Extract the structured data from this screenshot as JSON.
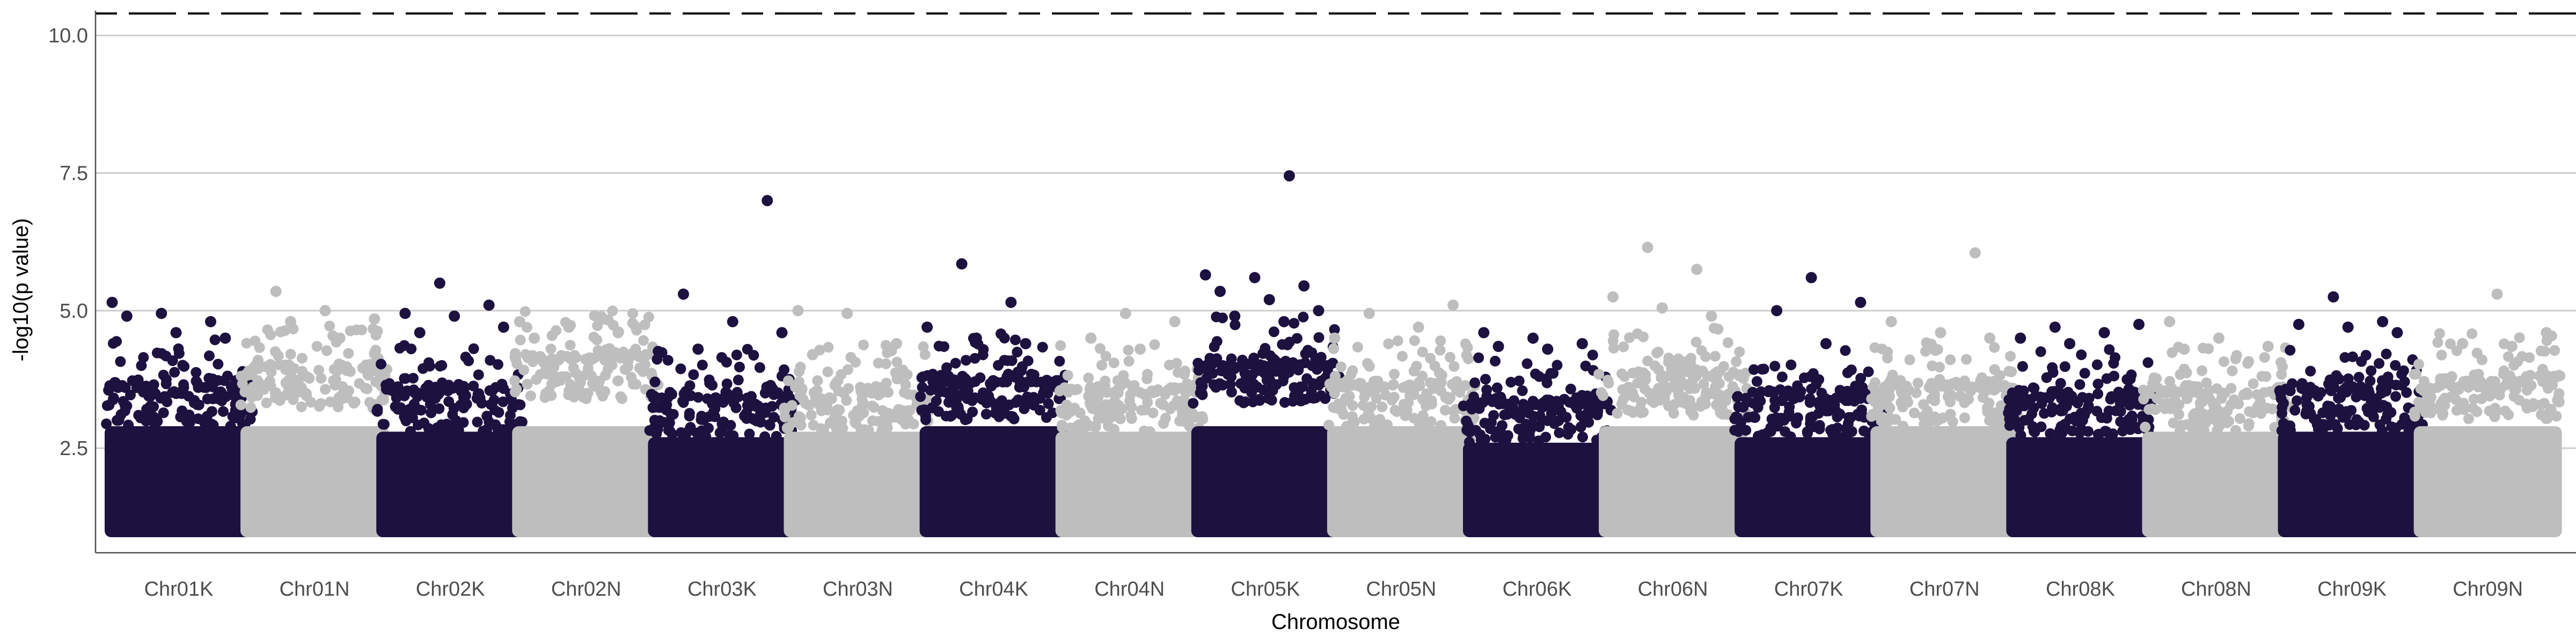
{
  "chart_data": {
    "type": "scatter",
    "subtype": "manhattan",
    "title": "",
    "xlabel": "Chromosome",
    "ylabel": "-log10(p value)",
    "ylim": [
      0.6,
      10.45
    ],
    "yticks": [
      2.5,
      5.0,
      7.5,
      10.0
    ],
    "ytick_labels": [
      "2.5",
      "5.0",
      "7.5",
      "10.0"
    ],
    "grid": "horizontal lines at y ticks only",
    "legend": "none",
    "colors": {
      "dark": "#1d1140",
      "light": "#bebebe",
      "grid": "#cccccc",
      "axis": "#4d4d4d"
    },
    "threshold": {
      "value": 5.0,
      "style": "solid",
      "color": "#cccccc"
    },
    "bonferroni_line": {
      "value": 10.4,
      "style": "dashed",
      "color": "#000000"
    },
    "categories": [
      "Chr01K",
      "Chr01N",
      "Chr02K",
      "Chr02N",
      "Chr03K",
      "Chr03N",
      "Chr04K",
      "Chr04N",
      "Chr05K",
      "Chr05N",
      "Chr06K",
      "Chr06N",
      "Chr07K",
      "Chr07N",
      "Chr08K",
      "Chr08N",
      "Chr09K",
      "Chr09N"
    ],
    "category_colors": [
      "dark",
      "light",
      "dark",
      "light",
      "dark",
      "light",
      "dark",
      "light",
      "dark",
      "light",
      "dark",
      "light",
      "dark",
      "light",
      "dark",
      "light",
      "dark",
      "light"
    ],
    "bulk_floor": 1.0,
    "bulk_top": [
      3.5,
      3.8,
      3.4,
      4.0,
      3.3,
      3.4,
      3.6,
      3.4,
      3.9,
      3.5,
      3.2,
      3.7,
      3.3,
      3.5,
      3.3,
      3.4,
      3.4,
      3.6
    ],
    "top_peaks": [
      {
        "chr": "Chr01K",
        "values": [
          5.15,
          4.95,
          4.8,
          4.9,
          4.6,
          4.5
        ]
      },
      {
        "chr": "Chr01N",
        "values": [
          5.35,
          5.0,
          4.85,
          4.8,
          4.5
        ]
      },
      {
        "chr": "Chr02K",
        "values": [
          5.5,
          5.1,
          4.95,
          4.9,
          4.7,
          4.6
        ]
      },
      {
        "chr": "Chr02N",
        "values": [
          4.85,
          4.8,
          4.7,
          4.6,
          4.5
        ]
      },
      {
        "chr": "Chr03K",
        "values": [
          7.0,
          5.3,
          4.8,
          4.6,
          4.3
        ]
      },
      {
        "chr": "Chr03N",
        "values": [
          5.0,
          4.95,
          4.4,
          4.2
        ]
      },
      {
        "chr": "Chr04K",
        "values": [
          5.85,
          5.15,
          4.7,
          4.5,
          4.4
        ]
      },
      {
        "chr": "Chr04N",
        "values": [
          4.95,
          4.8,
          4.5,
          4.3
        ]
      },
      {
        "chr": "Chr05K",
        "values": [
          7.45,
          5.65,
          5.6,
          5.45,
          5.35,
          5.2,
          5.0,
          4.9,
          4.8
        ]
      },
      {
        "chr": "Chr05N",
        "values": [
          5.1,
          4.95,
          4.7,
          4.5
        ]
      },
      {
        "chr": "Chr06K",
        "values": [
          4.6,
          4.5,
          4.4,
          4.35,
          4.3
        ]
      },
      {
        "chr": "Chr06N",
        "values": [
          6.15,
          5.75,
          5.25,
          5.05,
          4.9
        ]
      },
      {
        "chr": "Chr07K",
        "values": [
          5.6,
          5.15,
          5.0,
          4.4
        ]
      },
      {
        "chr": "Chr07N",
        "values": [
          6.05,
          4.8,
          4.6,
          4.5
        ]
      },
      {
        "chr": "Chr08K",
        "values": [
          4.75,
          4.7,
          4.6,
          4.5,
          4.4
        ]
      },
      {
        "chr": "Chr08N",
        "values": [
          4.8,
          4.5,
          4.35,
          4.3
        ]
      },
      {
        "chr": "Chr09K",
        "values": [
          5.25,
          4.8,
          4.75,
          4.7,
          4.6
        ]
      },
      {
        "chr": "Chr09N",
        "values": [
          5.3,
          4.6,
          4.4,
          4.35
        ]
      }
    ]
  }
}
